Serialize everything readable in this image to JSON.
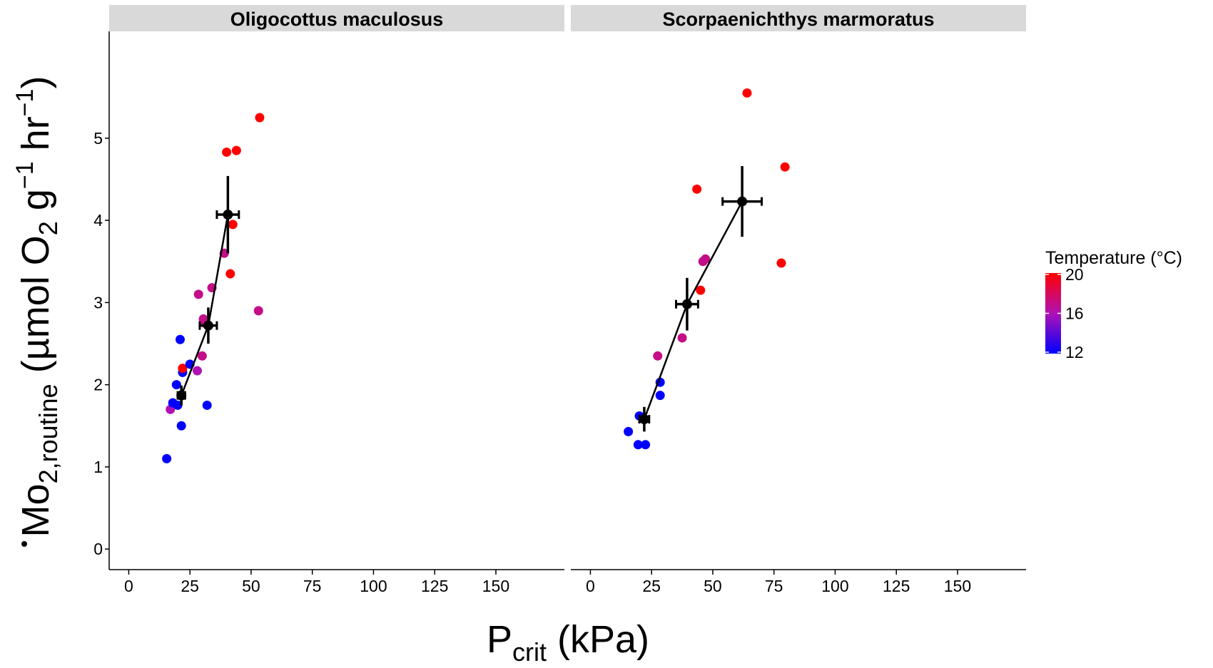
{
  "chart_data": {
    "type": "scatter",
    "xlabel": {
      "main": "P",
      "sub": "crit",
      "rest": " (kPa)"
    },
    "ylabel": {
      "main": "Mo",
      "sub": "2,routine",
      "rest": " (µmol O",
      "sub2": "2",
      "rest2": " g",
      "sup1": "−1",
      "rest3": " hr",
      "sup2": "−1",
      "close": ")"
    },
    "xlim": [
      -8,
      178
    ],
    "ylim": [
      -0.25,
      6.3
    ],
    "x_ticks": [
      0,
      25,
      50,
      75,
      100,
      125,
      150
    ],
    "y_ticks": [
      0,
      1,
      2,
      3,
      4,
      5
    ],
    "grid": false,
    "legend": {
      "title": "Temperature (°C)",
      "position": "right",
      "labels": [
        20,
        16,
        12
      ],
      "range": [
        12,
        20
      ],
      "colors": {
        "low": "#0000ff",
        "mid": "#b011b5",
        "high": "#ff0000"
      }
    },
    "panels": [
      {
        "title": "Oligocottus maculosus",
        "points": [
          {
            "x": 15.5,
            "y": 1.1,
            "t": 12
          },
          {
            "x": 17,
            "y": 1.7,
            "t": 16
          },
          {
            "x": 18,
            "y": 1.78,
            "t": 12
          },
          {
            "x": 19.5,
            "y": 2.0,
            "t": 12
          },
          {
            "x": 20,
            "y": 1.75,
            "t": 12
          },
          {
            "x": 21,
            "y": 2.55,
            "t": 12
          },
          {
            "x": 21.5,
            "y": 1.5,
            "t": 12
          },
          {
            "x": 22,
            "y": 2.15,
            "t": 12
          },
          {
            "x": 22,
            "y": 2.2,
            "t": 20
          },
          {
            "x": 25,
            "y": 2.25,
            "t": 12
          },
          {
            "x": 28,
            "y": 2.17,
            "t": 16
          },
          {
            "x": 28.5,
            "y": 3.1,
            "t": 17
          },
          {
            "x": 30,
            "y": 2.35,
            "t": 17
          },
          {
            "x": 30.5,
            "y": 2.8,
            "t": 17
          },
          {
            "x": 31,
            "y": 2.75,
            "t": 17
          },
          {
            "x": 32,
            "y": 1.75,
            "t": 12
          },
          {
            "x": 34,
            "y": 3.18,
            "t": 17
          },
          {
            "x": 39,
            "y": 3.6,
            "t": 17
          },
          {
            "x": 40,
            "y": 4.83,
            "t": 20
          },
          {
            "x": 41.5,
            "y": 3.35,
            "t": 20
          },
          {
            "x": 42.5,
            "y": 3.95,
            "t": 20
          },
          {
            "x": 44,
            "y": 4.85,
            "t": 20
          },
          {
            "x": 53,
            "y": 2.9,
            "t": 17
          },
          {
            "x": 53.5,
            "y": 5.25,
            "t": 20
          }
        ],
        "means": [
          {
            "x": 21.5,
            "y": 1.87,
            "xerr": 1.5,
            "yerr": 0.12
          },
          {
            "x": 32.5,
            "y": 2.72,
            "xerr": 3.5,
            "yerr": 0.22
          },
          {
            "x": 40.5,
            "y": 4.07,
            "xerr": 4.5,
            "yerr": 0.47
          }
        ]
      },
      {
        "title": "Scorpaenichthys marmoratus",
        "points": [
          {
            "x": 15.5,
            "y": 1.43,
            "t": 12
          },
          {
            "x": 19.5,
            "y": 1.27,
            "t": 12
          },
          {
            "x": 20,
            "y": 1.62,
            "t": 12
          },
          {
            "x": 22.5,
            "y": 1.27,
            "t": 12
          },
          {
            "x": 27.5,
            "y": 2.35,
            "t": 17
          },
          {
            "x": 28.5,
            "y": 2.03,
            "t": 12
          },
          {
            "x": 28.5,
            "y": 1.87,
            "t": 12
          },
          {
            "x": 37.5,
            "y": 2.57,
            "t": 17
          },
          {
            "x": 43.5,
            "y": 4.38,
            "t": 20
          },
          {
            "x": 45,
            "y": 3.15,
            "t": 20
          },
          {
            "x": 46,
            "y": 3.5,
            "t": 17
          },
          {
            "x": 47,
            "y": 3.53,
            "t": 17
          },
          {
            "x": 64,
            "y": 5.55,
            "t": 20
          },
          {
            "x": 78,
            "y": 3.48,
            "t": 20
          },
          {
            "x": 79.5,
            "y": 4.65,
            "t": 20
          }
        ],
        "means": [
          {
            "x": 22,
            "y": 1.58,
            "xerr": 2.0,
            "yerr": 0.15
          },
          {
            "x": 39.5,
            "y": 2.98,
            "xerr": 4.5,
            "yerr": 0.32
          },
          {
            "x": 62,
            "y": 4.23,
            "xerr": 8.0,
            "yerr": 0.43
          }
        ]
      }
    ]
  }
}
